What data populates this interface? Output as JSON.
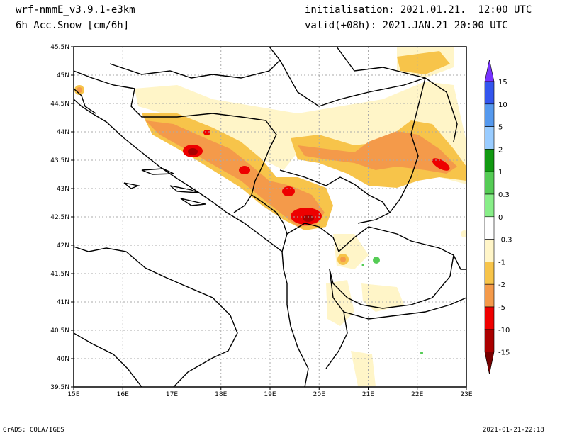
{
  "header": {
    "model": "wrf-nmmE_v3.9.1-e3km",
    "field": "6h Acc.Snow [cm/6h]",
    "init": "initialisation: 2021.01.21.  12:00 UTC",
    "valid": "valid(+08h): 2021.JAN.21 20:00 UTC"
  },
  "footer": {
    "credit": "GrADS: COLA/IGES",
    "timestamp": "2021-01-21-22:18"
  },
  "axes": {
    "lat_ticks": [
      "45.5N",
      "45N",
      "44.5N",
      "44N",
      "43.5N",
      "43N",
      "42.5N",
      "42N",
      "41.5N",
      "41N",
      "40.5N",
      "40N",
      "39.5N"
    ],
    "lon_ticks": [
      "15E",
      "16E",
      "17E",
      "18E",
      "19E",
      "20E",
      "21E",
      "22E",
      "23E"
    ]
  },
  "legend": {
    "labels": [
      "15",
      "10",
      "5",
      "2",
      "1",
      "0.3",
      "0",
      "-0.3",
      "-1",
      "-2",
      "-5",
      "-10",
      "-15"
    ],
    "colors": [
      "#7733ff",
      "#3355ee",
      "#5599ee",
      "#99ccff",
      "#119911",
      "#55cc55",
      "#88ee88",
      "#ffffff",
      "#fff5c8",
      "#f7c44a",
      "#f49a4a",
      "#ee0000",
      "#aa0000",
      "#770000"
    ]
  },
  "colors": {
    "light": "#fff5c8",
    "yellow": "#f7c44a",
    "orange": "#f49a4a",
    "red": "#ee0000",
    "darkred": "#aa0000",
    "green": "#55cc55"
  }
}
